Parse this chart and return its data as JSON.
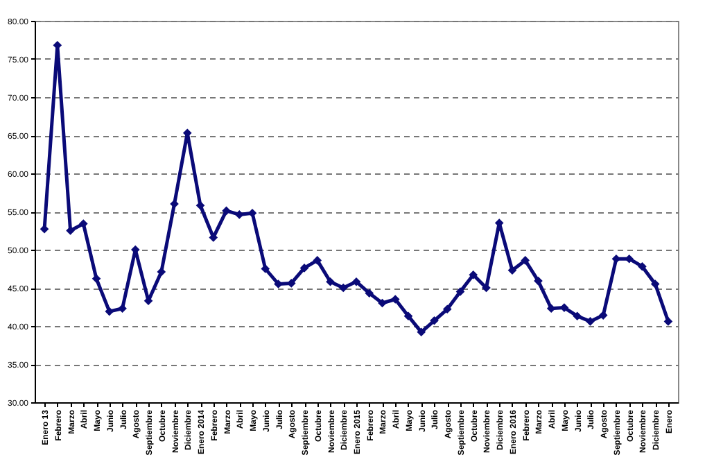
{
  "chart_data": {
    "type": "line",
    "categories": [
      "Enero 13",
      "Febrero",
      "Marzo",
      "Abril",
      "Mayo",
      "Junio",
      "Julio",
      "Agosto",
      "Septiembre",
      "Octubre",
      "Noviembre",
      "Diciembre",
      "Enero 2014",
      "Febrero",
      "Marzo",
      "Abril",
      "Mayo",
      "Junio",
      "Julio",
      "Agosto",
      "Septiembre",
      "Octubre",
      "Noviembre",
      "Diciembre",
      "Enero 2015",
      "Febrero",
      "Marzo",
      "Abril",
      "Mayo",
      "Junio",
      "Julio",
      "Agosto",
      "Septiembre",
      "Octubre",
      "Noviembre",
      "Diciembre",
      "Enero 2016",
      "Febrero",
      "Marzo",
      "Abril",
      "Mayo",
      "Junio",
      "Julio",
      "Agosto",
      "Septiembre",
      "Octubre",
      "Noviembre",
      "Diciembre",
      "Enero"
    ],
    "series": [
      {
        "color": "#0a0a78",
        "values": [
          52.7,
          76.8,
          52.5,
          53.4,
          46.2,
          41.9,
          42.3,
          50.0,
          43.3,
          47.1,
          56.0,
          65.3,
          55.8,
          51.6,
          55.1,
          54.6,
          54.8,
          47.5,
          45.5,
          45.6,
          47.6,
          48.6,
          45.8,
          45.0,
          45.8,
          44.3,
          43.0,
          43.5,
          41.3,
          39.2,
          40.7,
          42.2,
          44.5,
          46.7,
          45.0,
          53.5,
          47.3,
          48.6,
          45.9,
          42.3,
          42.4,
          41.3,
          40.6,
          41.4,
          48.8,
          48.8,
          47.8,
          45.5,
          40.6
        ]
      }
    ],
    "ylim": [
      30,
      80
    ],
    "yticks": [
      {
        "value": 30,
        "label": "30.00"
      },
      {
        "value": 35,
        "label": "35.00"
      },
      {
        "value": 40,
        "label": "40.00"
      },
      {
        "value": 45,
        "label": "45.00"
      },
      {
        "value": 50,
        "label": "50.00"
      },
      {
        "value": 55,
        "label": "55.00"
      },
      {
        "value": 60,
        "label": "60.00"
      },
      {
        "value": 65,
        "label": "65.00"
      },
      {
        "value": 70,
        "label": "70.00"
      },
      {
        "value": 75,
        "label": "75.00"
      },
      {
        "value": 80,
        "label": "80.00"
      }
    ],
    "grid": "y",
    "marker": "diamond",
    "line_style": "solid"
  }
}
